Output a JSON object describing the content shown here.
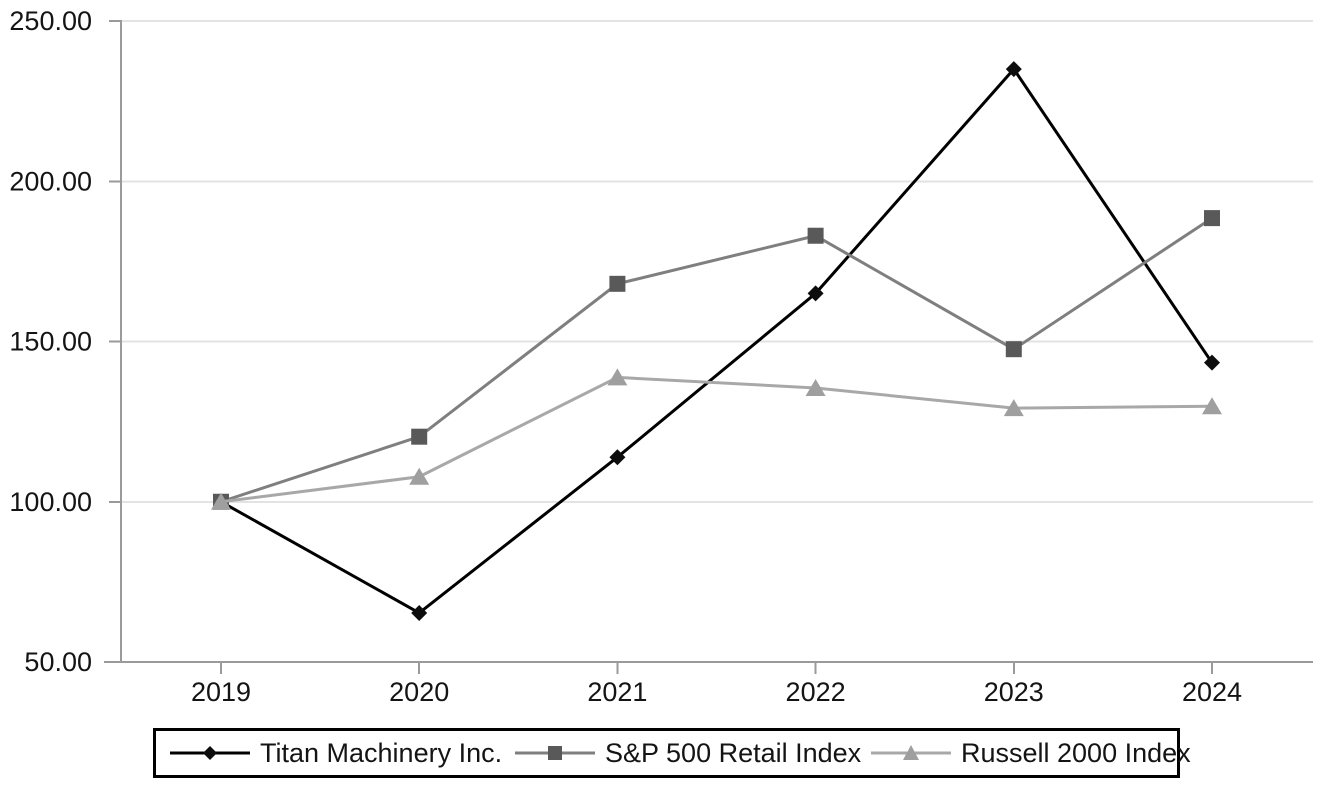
{
  "chart_data": {
    "type": "line",
    "title": "",
    "xlabel": "",
    "ylabel": "",
    "categories": [
      "2019",
      "2020",
      "2021",
      "2022",
      "2023",
      "2024"
    ],
    "series": [
      {
        "name": "Titan Machinery Inc.",
        "marker": "diamond",
        "line_color": "#000000",
        "marker_color": "#0d0d0d",
        "values": [
          100.0,
          65.3,
          113.9,
          165.0,
          235.0,
          143.4
        ]
      },
      {
        "name": "S&P 500 Retail Index",
        "marker": "square",
        "line_color": "#7f7f7f",
        "marker_color": "#595959",
        "values": [
          100.0,
          120.3,
          168.0,
          183.0,
          147.6,
          188.5
        ]
      },
      {
        "name": "Russell 2000 Index",
        "marker": "triangle",
        "line_color": "#a8a8a8",
        "marker_color": "#9f9f9f",
        "values": [
          100.0,
          107.8,
          138.8,
          135.5,
          129.2,
          129.8
        ]
      }
    ],
    "ylim": [
      50,
      250
    ],
    "y_ticks": [
      250,
      200,
      150,
      100,
      50
    ],
    "y_tick_labels": [
      "250.00",
      "200.00",
      "150.00",
      "100.00",
      "50.00"
    ],
    "grid": "horizontal gridlines on",
    "legend_position": "bottom boxed",
    "axis_color": "#9a9a9a",
    "grid_color": "#e3e3e3",
    "text_color": "#141414",
    "legend_border_color": "#000000"
  }
}
